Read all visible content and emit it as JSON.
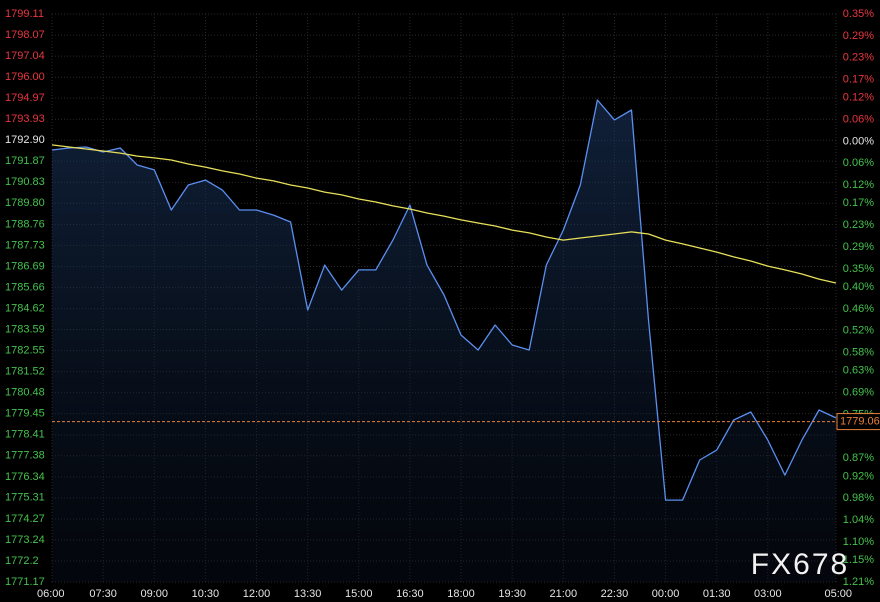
{
  "chart_data": {
    "type": "line",
    "watermark": "FX678",
    "ylim": [
      1771.17,
      1799.11
    ],
    "yticks": [
      1799.11,
      1798.07,
      1797.04,
      {
        "value": 1796,
        "label": "1796.00"
      },
      1794.97,
      1793.93,
      {
        "value": 1792.9,
        "label": "1792.90"
      },
      1791.87,
      1790.83,
      {
        "value": 1789.8,
        "label": "1789.80"
      },
      1788.76,
      1787.73,
      1786.69,
      1785.66,
      1784.62,
      1783.59,
      1782.55,
      1781.52,
      1780.48,
      1779.45,
      1778.41,
      1777.38,
      1776.34,
      1775.31,
      1774.27,
      1773.24,
      1772.2,
      1771.17
    ],
    "reference_price": 1792.9,
    "y2lim": [
      -1.21,
      0.35
    ],
    "y2ticks": [
      {
        "value": 0.35,
        "label": "0.35%"
      },
      {
        "value": 0.29,
        "label": "0.29%"
      },
      {
        "value": 0.23,
        "label": "0.23%"
      },
      {
        "value": 0.17,
        "label": "0.17%"
      },
      {
        "value": 0.12,
        "label": "0.12%"
      },
      {
        "value": 0.06,
        "label": "0.06%"
      },
      {
        "value": 0,
        "label": "0.00%"
      },
      {
        "value": -0.06,
        "label": "0.06%"
      },
      {
        "value": -0.12,
        "label": "0.12%"
      },
      {
        "value": -0.17,
        "label": "0.17%"
      },
      {
        "value": -0.23,
        "label": "0.23%"
      },
      {
        "value": -0.29,
        "label": "0.29%"
      },
      {
        "value": -0.35,
        "label": "0.35%"
      },
      {
        "value": -0.4,
        "label": "0.40%"
      },
      {
        "value": -0.46,
        "label": "0.46%"
      },
      {
        "value": -0.52,
        "label": "0.52%"
      },
      {
        "value": -0.58,
        "label": "0.58%"
      },
      {
        "value": -0.63,
        "label": "0.63%"
      },
      {
        "value": -0.69,
        "label": "0.69%"
      },
      {
        "value": -0.75,
        "label": "0.75%"
      },
      {
        "value": -0.87,
        "label": "0.87%"
      },
      {
        "value": -0.92,
        "label": "0.92%"
      },
      {
        "value": -0.98,
        "label": "0.98%"
      },
      {
        "value": -1.04,
        "label": "1.04%"
      },
      {
        "value": -1.1,
        "label": "1.10%"
      },
      {
        "value": -1.15,
        "label": "1.15%"
      },
      {
        "value": -1.21,
        "label": "1.21%"
      }
    ],
    "x": [
      "06:00",
      "06:30",
      "07:00",
      "07:30",
      "08:00",
      "08:30",
      "09:00",
      "09:30",
      "10:00",
      "10:30",
      "11:00",
      "11:30",
      "12:00",
      "12:30",
      "13:00",
      "13:30",
      "14:00",
      "14:30",
      "15:00",
      "15:30",
      "16:00",
      "16:30",
      "17:00",
      "17:30",
      "18:00",
      "18:30",
      "19:00",
      "19:30",
      "20:00",
      "20:30",
      "21:00",
      "21:30",
      "22:00",
      "22:30",
      "23:00",
      "23:30",
      "00:00",
      "00:30",
      "01:00",
      "01:30",
      "02:00",
      "02:30",
      "03:00",
      "03:30",
      "04:00",
      "04:30",
      "05:00"
    ],
    "xticks": [
      "06:00",
      "07:30",
      "09:00",
      "10:30",
      "12:00",
      "13:30",
      "15:00",
      "16:30",
      "18:00",
      "19:30",
      "21:00",
      "22:30",
      "00:00",
      "01:30",
      "03:00",
      "05:00"
    ],
    "series": [
      {
        "color": "#5b8ff0",
        "area": true,
        "values": [
          1792.42,
          1792.52,
          1792.57,
          1792.32,
          1792.52,
          1791.68,
          1791.44,
          1789.47,
          1790.7,
          1790.94,
          1790.45,
          1789.47,
          1789.47,
          1789.22,
          1788.88,
          1784.55,
          1786.76,
          1785.53,
          1786.52,
          1786.52,
          1787.99,
          1789.71,
          1786.76,
          1785.29,
          1783.32,
          1782.58,
          1783.81,
          1782.83,
          1782.58,
          1786.76,
          1788.48,
          1790.7,
          1794.88,
          1793.9,
          1794.39,
          1784.06,
          1775.2,
          1775.2,
          1777.17,
          1777.66,
          1779.14,
          1779.53,
          1778.15,
          1776.43,
          1778.15,
          1779.63,
          1779.24
        ]
      },
      {
        "color": "#e8e05a",
        "area": false,
        "values": [
          1792.67,
          1792.57,
          1792.47,
          1792.37,
          1792.27,
          1792.12,
          1792.03,
          1791.93,
          1791.73,
          1791.58,
          1791.39,
          1791.24,
          1791.04,
          1790.9,
          1790.7,
          1790.55,
          1790.35,
          1790.21,
          1790.01,
          1789.86,
          1789.67,
          1789.52,
          1789.32,
          1789.17,
          1788.98,
          1788.83,
          1788.68,
          1788.48,
          1788.34,
          1788.14,
          1787.99,
          1788.09,
          1788.19,
          1788.29,
          1788.39,
          1788.29,
          1787.99,
          1787.8,
          1787.6,
          1787.4,
          1787.16,
          1786.96,
          1786.71,
          1786.52,
          1786.32,
          1786.07,
          1785.88
        ]
      }
    ],
    "last_price": 1779.06,
    "last_price_color": "#e8803a",
    "up_color": "#e8363e",
    "down_color": "#44c24c",
    "flat_color": "#e6e6e6",
    "grid": true
  }
}
